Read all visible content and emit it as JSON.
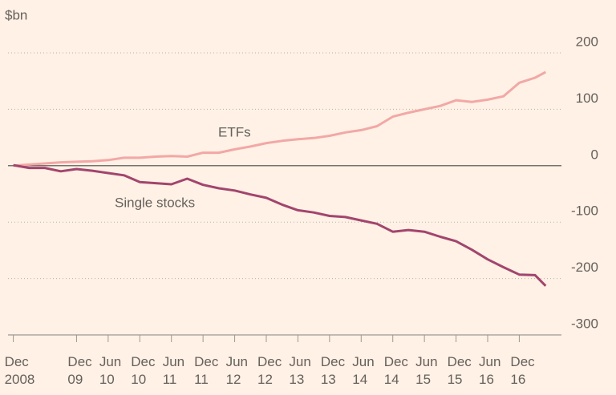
{
  "chart_data": {
    "type": "line",
    "y_label": "$bn",
    "x": [
      "2008-12",
      "2009-03",
      "2009-06",
      "2009-09",
      "2009-12",
      "2010-03",
      "2010-06",
      "2010-09",
      "2010-12",
      "2011-03",
      "2011-06",
      "2011-09",
      "2011-12",
      "2012-03",
      "2012-06",
      "2012-09",
      "2012-12",
      "2013-03",
      "2013-06",
      "2013-09",
      "2013-12",
      "2014-03",
      "2014-06",
      "2014-09",
      "2014-12",
      "2015-03",
      "2015-06",
      "2015-09",
      "2015-12",
      "2016-03",
      "2016-06",
      "2016-09",
      "2016-12",
      "2017-03",
      "2017-05"
    ],
    "series": [
      {
        "name": "ETFs",
        "color": "#f2a8a6",
        "values": [
          0,
          2,
          4,
          6,
          7,
          8,
          10,
          14,
          14,
          16,
          17,
          16,
          23,
          23,
          29,
          34,
          40,
          44,
          47,
          49,
          53,
          59,
          63,
          70,
          87,
          94,
          100,
          106,
          116,
          113,
          117,
          123,
          147,
          156,
          166
        ]
      },
      {
        "name": "Single stocks",
        "color": "#a2456e",
        "values": [
          1,
          -4,
          -4,
          -10,
          -6,
          -9,
          -13,
          -17,
          -29,
          -31,
          -33,
          -23,
          -34,
          -40,
          -44,
          -51,
          -57,
          -69,
          -79,
          -83,
          -89,
          -91,
          -97,
          -103,
          -117,
          -114,
          -117,
          -126,
          -134,
          -149,
          -166,
          -180,
          -193,
          -194,
          -213
        ]
      }
    ],
    "xlim": [
      "2008-11",
      "2017-08"
    ],
    "xticks": [
      {
        "value": "2008-12",
        "label": "Dec 2008"
      },
      {
        "value": "2009-12",
        "label": "Dec 09"
      },
      {
        "value": "2010-06",
        "label": "Jun 10"
      },
      {
        "value": "2010-12",
        "label": "Dec 10"
      },
      {
        "value": "2011-06",
        "label": "Jun 11"
      },
      {
        "value": "2011-12",
        "label": "Dec 11"
      },
      {
        "value": "2012-06",
        "label": "Jun 12"
      },
      {
        "value": "2012-12",
        "label": "Dec 12"
      },
      {
        "value": "2013-06",
        "label": "Jun 13"
      },
      {
        "value": "2013-12",
        "label": "Dec 13"
      },
      {
        "value": "2014-06",
        "label": "Jun 14"
      },
      {
        "value": "2014-12",
        "label": "Dec 14"
      },
      {
        "value": "2015-06",
        "label": "Jun 15"
      },
      {
        "value": "2015-12",
        "label": "Dec 15"
      },
      {
        "value": "2016-06",
        "label": "Jun 16"
      },
      {
        "value": "2016-12",
        "label": "Dec 16"
      }
    ],
    "ylim": [
      -300,
      200
    ],
    "yticks": [
      200,
      100,
      0,
      -100,
      -200,
      -300
    ],
    "grid": true
  }
}
